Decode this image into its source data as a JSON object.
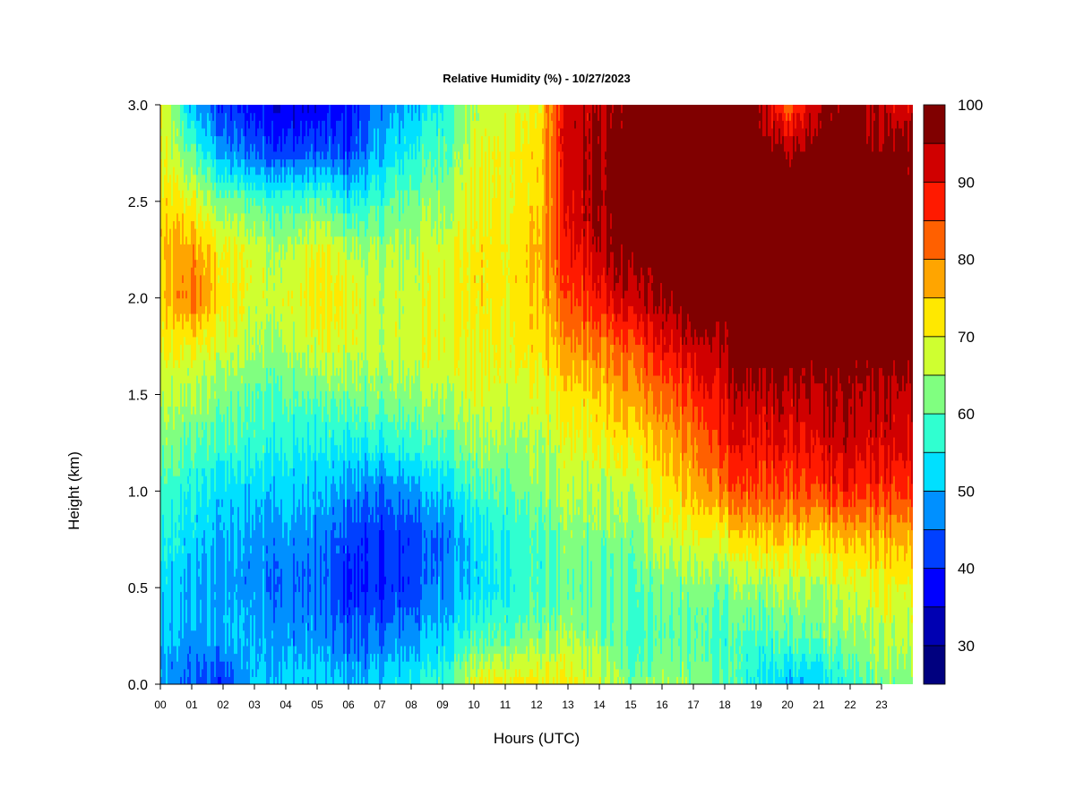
{
  "chart_data": {
    "type": "heatmap",
    "title": "Relative Humidity (%) - 10/27/2023",
    "xlabel": "Hours (UTC)",
    "ylabel": "Height (km)",
    "xlim": [
      0,
      24
    ],
    "ylim": [
      0,
      3
    ],
    "x_tick_labels": [
      "00",
      "01",
      "02",
      "03",
      "04",
      "05",
      "06",
      "07",
      "08",
      "09",
      "10",
      "11",
      "12",
      "13",
      "14",
      "15",
      "16",
      "17",
      "18",
      "19",
      "20",
      "21",
      "22",
      "23"
    ],
    "y_tick_labels": [
      "0.0",
      "0.5",
      "1.0",
      "1.5",
      "2.0",
      "2.5",
      "3.0"
    ],
    "y_tick_values": [
      0,
      0.5,
      1.0,
      1.5,
      2.0,
      2.5,
      3.0
    ],
    "x": [
      0,
      1,
      2,
      3,
      4,
      5,
      6,
      7,
      8,
      9,
      10,
      11,
      12,
      13,
      14,
      15,
      16,
      17,
      18,
      19,
      20,
      21,
      22,
      23,
      24
    ],
    "y": [
      0,
      0.25,
      0.5,
      0.75,
      1.0,
      1.25,
      1.5,
      1.75,
      2.0,
      2.25,
      2.5,
      2.75,
      3.0
    ],
    "z": [
      [
        48,
        50,
        52,
        55,
        58,
        62,
        65,
        70,
        72,
        74,
        72,
        70,
        70
      ],
      [
        45,
        48,
        50,
        52,
        55,
        60,
        65,
        70,
        82,
        78,
        70,
        60,
        50
      ],
      [
        40,
        50,
        48,
        50,
        52,
        58,
        62,
        68,
        72,
        70,
        62,
        48,
        40
      ],
      [
        52,
        50,
        48,
        48,
        52,
        58,
        60,
        65,
        68,
        68,
        60,
        45,
        38
      ],
      [
        52,
        48,
        45,
        48,
        52,
        56,
        60,
        65,
        68,
        65,
        58,
        42,
        35
      ],
      [
        52,
        48,
        45,
        46,
        50,
        55,
        60,
        68,
        72,
        70,
        60,
        44,
        36
      ],
      [
        50,
        44,
        40,
        42,
        48,
        55,
        62,
        68,
        70,
        66,
        55,
        42,
        38
      ],
      [
        52,
        45,
        40,
        40,
        45,
        55,
        62,
        66,
        66,
        64,
        58,
        50,
        46
      ],
      [
        55,
        48,
        42,
        42,
        48,
        58,
        64,
        68,
        68,
        66,
        62,
        56,
        50
      ],
      [
        58,
        52,
        48,
        46,
        52,
        60,
        66,
        70,
        70,
        68,
        64,
        60,
        56
      ],
      [
        70,
        58,
        52,
        52,
        58,
        64,
        68,
        70,
        72,
        72,
        70,
        68,
        66
      ],
      [
        72,
        60,
        55,
        56,
        60,
        64,
        68,
        70,
        72,
        72,
        70,
        70,
        68
      ],
      [
        72,
        62,
        58,
        58,
        62,
        65,
        68,
        72,
        74,
        76,
        72,
        72,
        70
      ],
      [
        70,
        64,
        60,
        62,
        65,
        68,
        72,
        78,
        84,
        88,
        90,
        92,
        92
      ],
      [
        68,
        62,
        60,
        62,
        65,
        70,
        74,
        80,
        88,
        94,
        96,
        96,
        94
      ],
      [
        62,
        58,
        60,
        62,
        66,
        72,
        78,
        84,
        94,
        98,
        100,
        100,
        98
      ],
      [
        65,
        60,
        62,
        68,
        72,
        76,
        82,
        90,
        96,
        100,
        100,
        100,
        100
      ],
      [
        62,
        60,
        62,
        68,
        75,
        80,
        86,
        92,
        100,
        100,
        100,
        100,
        100
      ],
      [
        60,
        58,
        62,
        70,
        82,
        88,
        92,
        96,
        100,
        100,
        100,
        100,
        100
      ],
      [
        55,
        58,
        64,
        74,
        84,
        90,
        94,
        100,
        100,
        100,
        100,
        100,
        98
      ],
      [
        50,
        60,
        65,
        74,
        84,
        90,
        94,
        100,
        100,
        100,
        100,
        96,
        82
      ],
      [
        52,
        62,
        66,
        74,
        86,
        92,
        96,
        100,
        100,
        100,
        100,
        100,
        96
      ],
      [
        58,
        64,
        68,
        76,
        88,
        94,
        96,
        100,
        100,
        100,
        100,
        100,
        100
      ],
      [
        62,
        66,
        70,
        76,
        86,
        92,
        94,
        100,
        100,
        100,
        100,
        98,
        92
      ],
      [
        62,
        66,
        70,
        76,
        86,
        92,
        94,
        100,
        100,
        100,
        100,
        98,
        92
      ]
    ],
    "colorbar": {
      "levels": [
        25,
        30,
        35,
        40,
        45,
        50,
        55,
        60,
        65,
        70,
        75,
        80,
        85,
        90,
        95,
        100
      ],
      "colors": [
        "#00007F",
        "#0000B2",
        "#0000FF",
        "#0040FF",
        "#0090FF",
        "#00E0FF",
        "#30FFD0",
        "#80FF80",
        "#CFFF30",
        "#FFE800",
        "#FFA500",
        "#FF6000",
        "#FF1A00",
        "#D00000",
        "#800000"
      ],
      "tick_labels": [
        "30",
        "40",
        "50",
        "60",
        "70",
        "80",
        "90",
        "100"
      ],
      "tick_values": [
        30,
        40,
        50,
        60,
        70,
        80,
        90,
        100
      ]
    },
    "grid": false
  }
}
